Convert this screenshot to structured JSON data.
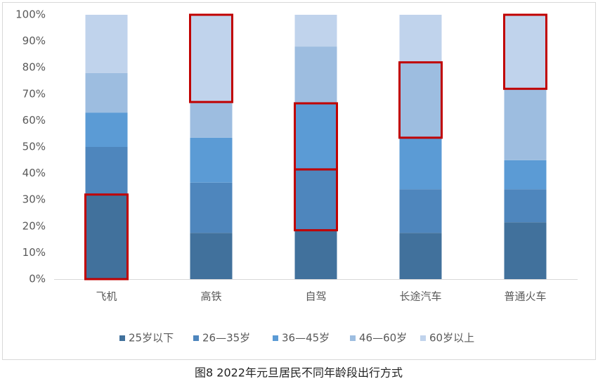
{
  "chart_data": {
    "type": "stacked_bar_percent",
    "title": "图8 2022年元旦居民不同年龄段出行方式",
    "categories": [
      "飞机",
      "高铁",
      "自驾",
      "长途汽车",
      "普通火车"
    ],
    "series": [
      {
        "name": "25岁以下",
        "color": "#41719c",
        "values": [
          32,
          17.5,
          18.5,
          17.5,
          21.5
        ]
      },
      {
        "name": "26—35岁",
        "color": "#4e86bd",
        "values": [
          18,
          19,
          23,
          16.5,
          12.5
        ]
      },
      {
        "name": "36—45岁",
        "color": "#5b9bd5",
        "values": [
          13,
          17,
          25,
          19.5,
          11
        ]
      },
      {
        "name": "46—60岁",
        "color": "#9dbde0",
        "values": [
          15,
          13.5,
          21.5,
          28.5,
          27
        ]
      },
      {
        "name": "60岁以上",
        "color": "#c0d3ec",
        "values": [
          22,
          33,
          12,
          18,
          28
        ]
      }
    ],
    "ylim": [
      0,
      100
    ],
    "yticks": [
      {
        "value": 0,
        "label": "0%"
      },
      {
        "value": 10,
        "label": "10%"
      },
      {
        "value": 20,
        "label": "20%"
      },
      {
        "value": 30,
        "label": "30%"
      },
      {
        "value": 40,
        "label": "40%"
      },
      {
        "value": 50,
        "label": "50%"
      },
      {
        "value": 60,
        "label": "60%"
      },
      {
        "value": 70,
        "label": "70%"
      },
      {
        "value": 80,
        "label": "80%"
      },
      {
        "value": 90,
        "label": "90%"
      },
      {
        "value": 100,
        "label": "100%"
      }
    ],
    "grid": false,
    "legend": "bottom",
    "highlight_color": "#c00000",
    "highlights": [
      {
        "category": 0,
        "series": 0
      },
      {
        "category": 1,
        "series": 4
      },
      {
        "category": 2,
        "series": 1
      },
      {
        "category": 2,
        "series": 2
      },
      {
        "category": 3,
        "series": 3
      },
      {
        "category": 4,
        "series": 4
      }
    ]
  }
}
